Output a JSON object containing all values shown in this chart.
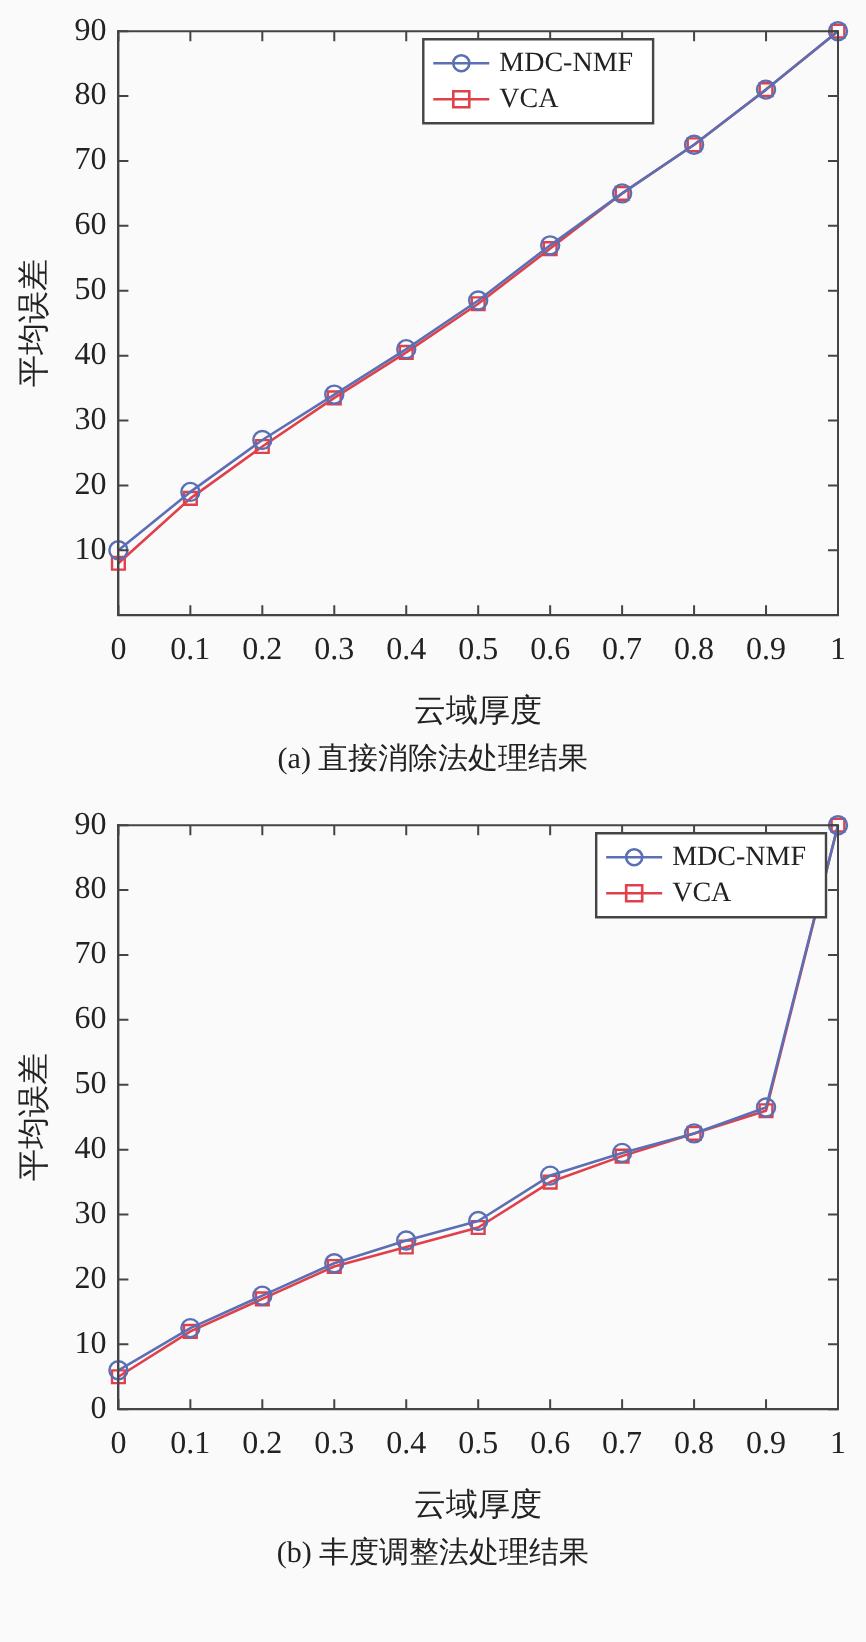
{
  "chart_data": [
    {
      "type": "line",
      "xlabel": "云域厚度",
      "ylabel": "平均误差",
      "annotations": [
        "(a) 直接消除法处理结果"
      ],
      "x": [
        0,
        0.1,
        0.2,
        0.3,
        0.4,
        0.5,
        0.6,
        0.7,
        0.8,
        0.9,
        1
      ],
      "xlim": [
        0,
        1
      ],
      "xticks": [
        0,
        0.1,
        0.2,
        0.3,
        0.4,
        0.5,
        0.6,
        0.7,
        0.8,
        0.9,
        1
      ],
      "ylim": [
        0,
        90
      ],
      "yticks": [
        10,
        20,
        30,
        40,
        50,
        60,
        70,
        80,
        90
      ],
      "grid": false,
      "legend": "top",
      "line_style": "solid",
      "series": [
        {
          "name": "MDC-NMF",
          "color": "#5a6fb4",
          "marker": "circle",
          "values": [
            10,
            19,
            27,
            34,
            41,
            48.5,
            57,
            65,
            72.5,
            81,
            90
          ]
        },
        {
          "name": "VCA",
          "color": "#e0404a",
          "marker": "square",
          "values": [
            8,
            18,
            26,
            33.5,
            40.5,
            48,
            56.5,
            65,
            72.5,
            81,
            90
          ]
        }
      ]
    },
    {
      "type": "line",
      "xlabel": "云域厚度",
      "ylabel": "平均误差",
      "annotations": [
        "(b) 丰度调整法处理结果"
      ],
      "x": [
        0,
        0.1,
        0.2,
        0.3,
        0.4,
        0.5,
        0.6,
        0.7,
        0.8,
        0.9,
        1
      ],
      "xlim": [
        0,
        1
      ],
      "xticks": [
        0,
        0.1,
        0.2,
        0.3,
        0.4,
        0.5,
        0.6,
        0.7,
        0.8,
        0.9,
        1
      ],
      "ylim": [
        0,
        90
      ],
      "yticks": [
        0,
        10,
        20,
        30,
        40,
        50,
        60,
        70,
        80,
        90
      ],
      "grid": false,
      "legend": "top right",
      "line_style": "solid",
      "series": [
        {
          "name": "MDC-NMF",
          "color": "#5a6fb4",
          "marker": "circle",
          "values": [
            6,
            12.5,
            17.5,
            22.5,
            26,
            29,
            36,
            39.5,
            42.5,
            46.5,
            90
          ]
        },
        {
          "name": "VCA",
          "color": "#e0404a",
          "marker": "square",
          "values": [
            5,
            12,
            17,
            22,
            25,
            28,
            35,
            39,
            42.5,
            46,
            90
          ]
        }
      ]
    }
  ]
}
